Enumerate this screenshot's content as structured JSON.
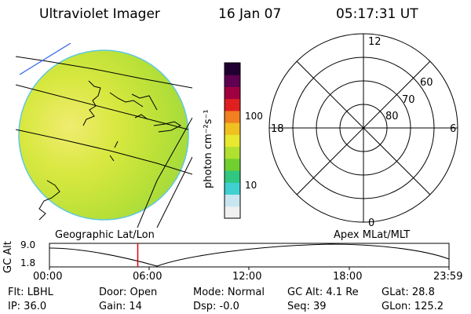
{
  "header": {
    "instrument": "Ultraviolet Imager",
    "date": "16 Jan 07",
    "time": "05:17:31 UT"
  },
  "colorbar": {
    "unit_label": "photon cm⁻²s⁻¹",
    "ticks": [
      "100",
      "10"
    ],
    "scale": "log",
    "colors": [
      "#f0f0f0",
      "#c8e6f0",
      "#40d0d0",
      "#30c880",
      "#70d030",
      "#b0e030",
      "#e8e830",
      "#f0c020",
      "#f08020",
      "#e02020",
      "#a00040",
      "#600050",
      "#200030"
    ]
  },
  "map_left": {
    "label": "Geographic Lat/Lon"
  },
  "map_right": {
    "label": "Apex MLat/MLT",
    "mlt_labels": {
      "top": "12",
      "left": "18",
      "right": "6",
      "bottom": "0"
    },
    "lat_labels": [
      "60",
      "70",
      "80"
    ]
  },
  "timeline": {
    "axis_label": "GC Alt",
    "y_ticks": [
      "9.0",
      "1.8"
    ],
    "x_ticks": [
      "00:00",
      "06:00",
      "12:00",
      "18:00",
      "23:59"
    ],
    "current_time_fraction": 0.221
  },
  "status": {
    "flt": "Flt: LBHL",
    "ip": "IP: 36.0",
    "door": "Door: Open",
    "gain": "Gain: 14",
    "mode": "Mode: Normal",
    "dsp": "Dsp:   -0.0",
    "gcalt": "GC Alt: 4.1 Re",
    "seq": "Seq: 39",
    "glat": "GLat:  28.8",
    "glon": "GLon: 125.2"
  }
}
